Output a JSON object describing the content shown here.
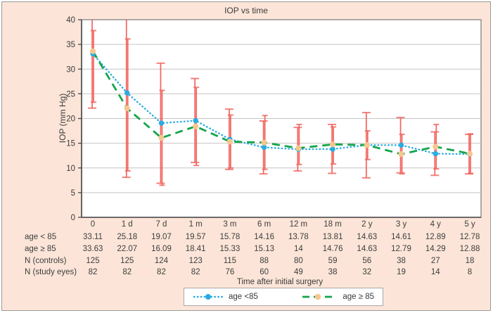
{
  "figure": {
    "title": "IOP vs time"
  },
  "chart_data": {
    "type": "line",
    "title": "IOP vs time",
    "xlabel": "Time after initial surgery",
    "ylabel": "IOP (mm Hg)",
    "ylim": [
      0,
      40
    ],
    "yticks": [
      0,
      5,
      10,
      15,
      20,
      25,
      30,
      35,
      40
    ],
    "grid": "horizontal",
    "legend_position": "bottom",
    "categories": [
      "0",
      "1 d",
      "7 d",
      "1 m",
      "3 m",
      "6 m",
      "12 m",
      "18 m",
      "2 y",
      "3 y",
      "4 y",
      "5 y"
    ],
    "series": [
      {
        "name": "age <85",
        "line_style": "dotted",
        "color": "#29abe2",
        "marker_color": "#29abe2",
        "values": [
          33.11,
          25.18,
          19.07,
          19.57,
          15.78,
          14.16,
          13.78,
          13.81,
          14.63,
          14.61,
          12.89,
          12.78
        ],
        "error_low": [
          22.1,
          8.1,
          6.9,
          11.1,
          9.7,
          8.8,
          9.4,
          8.9,
          8.0,
          9.0,
          8.5,
          8.8
        ],
        "error_high": [
          40.0,
          40.0,
          31.2,
          28.1,
          21.9,
          19.5,
          18.2,
          18.8,
          21.2,
          20.2,
          17.3,
          16.8
        ]
      },
      {
        "name": "age ≥ 85",
        "line_style": "dashed",
        "color": "#14a54a",
        "marker_color": "#f6c690",
        "values": [
          33.63,
          22.07,
          16.09,
          18.41,
          15.33,
          15.13,
          14,
          14.76,
          14.63,
          12.79,
          14.29,
          12.88
        ],
        "error_low": [
          23.3,
          9.4,
          6.5,
          10.5,
          10.0,
          9.7,
          10.7,
          10.8,
          11.7,
          8.8,
          9.8,
          8.9
        ],
        "error_high": [
          37.8,
          36.1,
          25.7,
          26.3,
          20.7,
          20.6,
          18.8,
          18.3,
          17.5,
          16.8,
          18.8,
          16.9
        ]
      }
    ],
    "error_bar_color": "#f2635d"
  },
  "table": {
    "rows": [
      {
        "label": "age < 85",
        "values": [
          "33.11",
          "25.18",
          "19.07",
          "19.57",
          "15.78",
          "14.16",
          "13.78",
          "13.81",
          "14.63",
          "14.61",
          "12.89",
          "12.78"
        ]
      },
      {
        "label": "age ≥ 85",
        "values": [
          "33.63",
          "22.07",
          "16.09",
          "18.41",
          "15.33",
          "15.13",
          "14",
          "14.76",
          "14.63",
          "12.79",
          "14.29",
          "12.88"
        ]
      },
      {
        "label": "N (controls)",
        "values": [
          "125",
          "125",
          "124",
          "123",
          "115",
          "88",
          "80",
          "59",
          "56",
          "38",
          "27",
          "18"
        ]
      },
      {
        "label": "N (study eyes)",
        "values": [
          "82",
          "82",
          "82",
          "82",
          "76",
          "60",
          "49",
          "38",
          "32",
          "19",
          "14",
          "8"
        ]
      }
    ]
  },
  "legend": {
    "entries": [
      {
        "label": "age <85"
      },
      {
        "label": "age ≥ 85"
      }
    ]
  },
  "colors": {
    "figure_background": "#fce5d8",
    "figure_border": "#9a9a9a",
    "plot_background": "#ffffff",
    "plot_border": "#8a8a8a",
    "axis_line": "#4a4a4a",
    "gridline": "#c4c4c4",
    "text": "#3a3a3a"
  }
}
